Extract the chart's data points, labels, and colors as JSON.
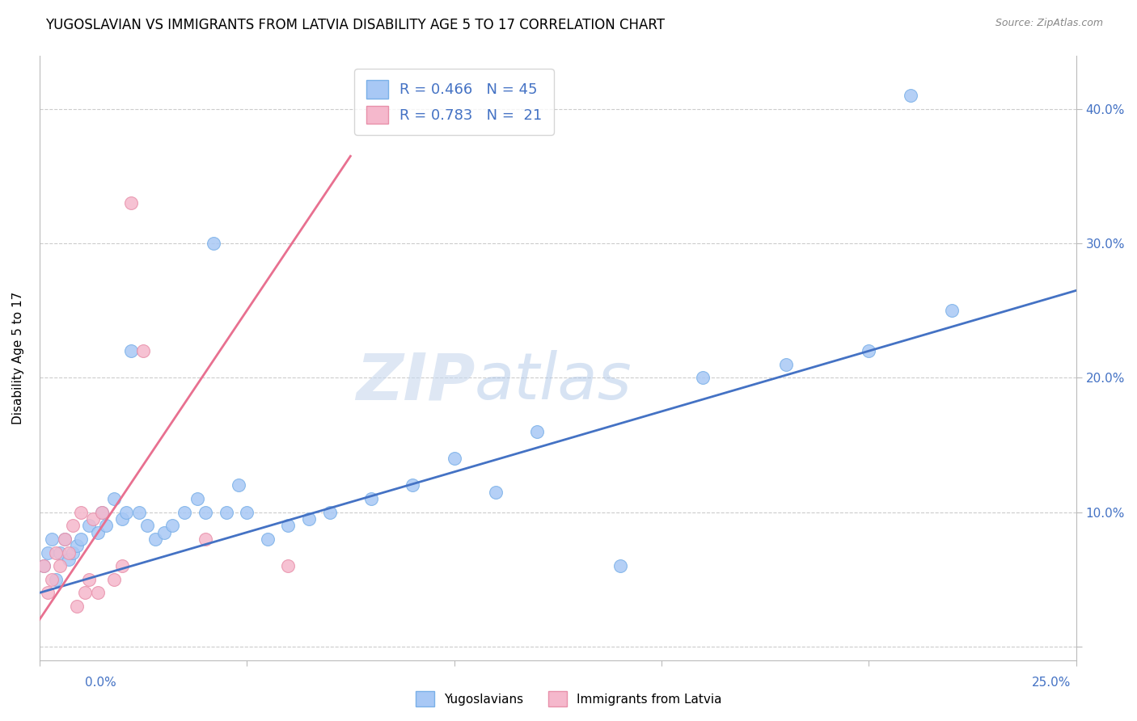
{
  "title": "YUGOSLAVIAN VS IMMIGRANTS FROM LATVIA DISABILITY AGE 5 TO 17 CORRELATION CHART",
  "source": "Source: ZipAtlas.com",
  "ylabel": "Disability Age 5 to 17",
  "xlim": [
    0.0,
    0.25
  ],
  "ylim": [
    -0.01,
    0.44
  ],
  "legend1_label": "R = 0.466   N = 45",
  "legend2_label": "R = 0.783   N =  21",
  "scatter_blue_x": [
    0.001,
    0.002,
    0.003,
    0.004,
    0.005,
    0.006,
    0.007,
    0.008,
    0.009,
    0.01,
    0.012,
    0.014,
    0.015,
    0.016,
    0.018,
    0.02,
    0.021,
    0.022,
    0.024,
    0.026,
    0.028,
    0.03,
    0.032,
    0.035,
    0.038,
    0.04,
    0.042,
    0.045,
    0.048,
    0.05,
    0.055,
    0.06,
    0.065,
    0.07,
    0.08,
    0.09,
    0.1,
    0.11,
    0.12,
    0.14,
    0.16,
    0.18,
    0.2,
    0.22,
    0.21
  ],
  "scatter_blue_y": [
    0.06,
    0.07,
    0.08,
    0.05,
    0.07,
    0.08,
    0.065,
    0.07,
    0.075,
    0.08,
    0.09,
    0.085,
    0.1,
    0.09,
    0.11,
    0.095,
    0.1,
    0.22,
    0.1,
    0.09,
    0.08,
    0.085,
    0.09,
    0.1,
    0.11,
    0.1,
    0.3,
    0.1,
    0.12,
    0.1,
    0.08,
    0.09,
    0.095,
    0.1,
    0.11,
    0.12,
    0.14,
    0.115,
    0.16,
    0.06,
    0.2,
    0.21,
    0.22,
    0.25,
    0.41
  ],
  "scatter_pink_x": [
    0.001,
    0.002,
    0.003,
    0.004,
    0.005,
    0.006,
    0.007,
    0.008,
    0.009,
    0.01,
    0.011,
    0.012,
    0.013,
    0.014,
    0.015,
    0.018,
    0.02,
    0.022,
    0.025,
    0.04,
    0.06
  ],
  "scatter_pink_y": [
    0.06,
    0.04,
    0.05,
    0.07,
    0.06,
    0.08,
    0.07,
    0.09,
    0.03,
    0.1,
    0.04,
    0.05,
    0.095,
    0.04,
    0.1,
    0.05,
    0.06,
    0.33,
    0.22,
    0.08,
    0.06
  ],
  "blue_line_x": [
    0.0,
    0.25
  ],
  "blue_line_y": [
    0.04,
    0.265
  ],
  "pink_line_x": [
    0.0,
    0.075
  ],
  "pink_line_y": [
    0.02,
    0.365
  ],
  "watermark_zip": "ZIP",
  "watermark_atlas": "atlas",
  "title_fontsize": 12,
  "right_ytick_labels": [
    "",
    "10.0%",
    "20.0%",
    "30.0%",
    "40.0%"
  ],
  "right_ytick_vals": [
    0.0,
    0.1,
    0.2,
    0.3,
    0.4
  ]
}
